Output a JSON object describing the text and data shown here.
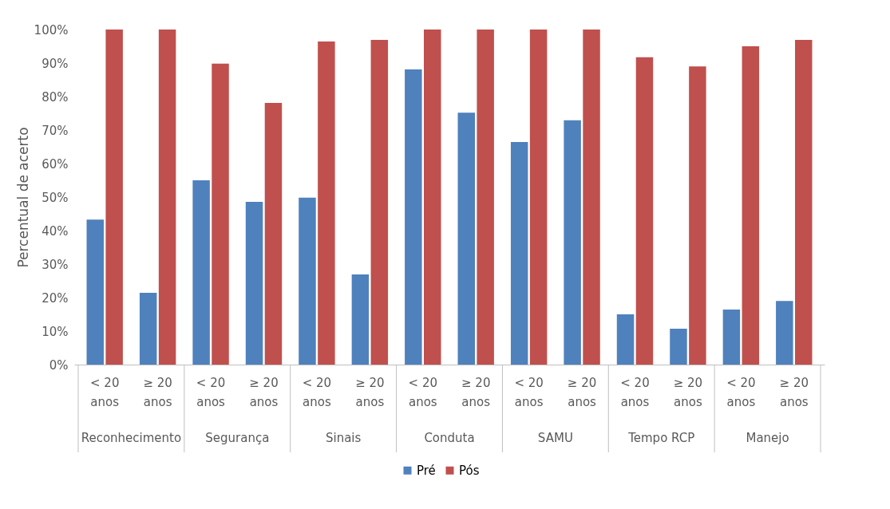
{
  "chart_data": {
    "type": "bar",
    "ylabel": "Percentual de acerto",
    "categories": [
      "< 20 anos",
      "≥ 20 anos",
      "< 20 anos",
      "≥ 20 anos",
      "< 20 anos",
      "≥ 20 anos",
      "< 20 anos",
      "≥ 20 anos",
      "< 20 anos",
      "≥ 20 anos",
      "< 20 anos",
      "≥ 20 anos",
      "< 20 anos",
      "≥ 20 anos"
    ],
    "annotations": [
      "Reconhecimento",
      "Segurança",
      "Sinais",
      "Conduta",
      "SAMU",
      "Tempo RCP",
      "Manejo"
    ],
    "series": [
      {
        "name": "Pré",
        "color": "#4f81bd",
        "values": [
          43.3,
          21.4,
          55,
          48.6,
          49.8,
          26.9,
          88.1,
          75.2,
          66.4,
          72.9,
          15,
          10.7,
          16.4,
          19
        ]
      },
      {
        "name": "Pós",
        "color": "#c0504d",
        "values": [
          100,
          100,
          89.8,
          78.1,
          96.4,
          96.9,
          100,
          100,
          100,
          100,
          91.7,
          89,
          95,
          96.9
        ]
      }
    ],
    "ylim": [
      0,
      100
    ],
    "yticks": [
      {
        "value": 0,
        "label": "0%"
      },
      {
        "value": 10,
        "label": "10%"
      },
      {
        "value": 20,
        "label": "20%"
      },
      {
        "value": 30,
        "label": "30%"
      },
      {
        "value": 40,
        "label": "40%"
      },
      {
        "value": 50,
        "label": "50%"
      },
      {
        "value": 60,
        "label": "60%"
      },
      {
        "value": 70,
        "label": "70%"
      },
      {
        "value": 80,
        "label": "80%"
      },
      {
        "value": 90,
        "label": "90%"
      },
      {
        "value": 100,
        "label": "100%"
      }
    ],
    "grid": false,
    "legend": "bottom"
  }
}
